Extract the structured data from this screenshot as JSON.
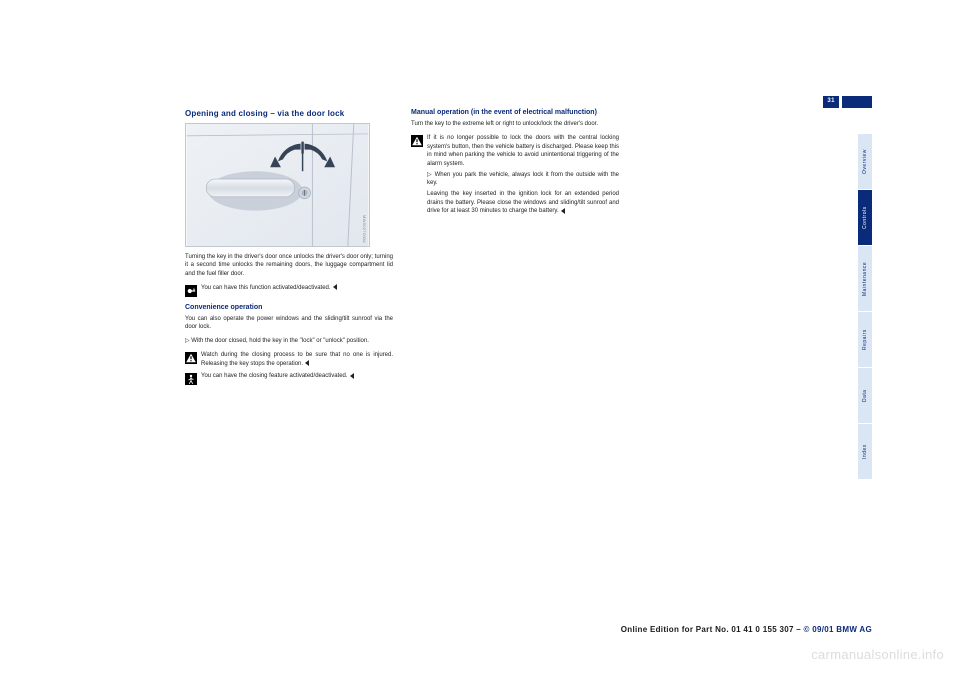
{
  "pageNumber": "31",
  "tabs": [
    {
      "label": "Overview",
      "height": 56,
      "active": false
    },
    {
      "label": "Controls",
      "height": 56,
      "active": true
    },
    {
      "label": "Maintenance",
      "height": 66,
      "active": false
    },
    {
      "label": "Repairs",
      "height": 56,
      "active": false
    },
    {
      "label": "Data",
      "height": 56,
      "active": false
    },
    {
      "label": "Index",
      "height": 56,
      "active": false
    }
  ],
  "col1": {
    "heading": "Opening and closing – via the door lock",
    "figureCode": "MW0027OWA",
    "p1": "Turning the key in the driver's door once unlocks the driver's door only; turning it a second time unlocks the remaining doors, the luggage compartment lid and the fuel filler door.",
    "p2": "You can have this function activated/deactivated.",
    "sub1": "Convenience operation",
    "p3": "You can also operate the power windows and the sliding/tilt sunroof via the door lock.",
    "p3b": "▷ With the door closed, hold the key in the \"lock\" or \"unlock\" position.",
    "p4": "Watch during the closing process to be sure that no one is injured.",
    "p4tail": "Releasing the key stops the operation.",
    "p5": "You can have the closing feature activated/deactivated."
  },
  "col2": {
    "sub1": "Manual operation (in the event of electrical malfunction)",
    "p1": "Turn the key to the extreme left or right to unlock/lock the driver's door.",
    "p2": "If it is no longer possible to lock the doors with the central locking system's button, then the vehicle battery is discharged. Please keep this in mind when parking the vehicle to avoid unintentional triggering of the alarm system.",
    "p2b": "▷ When you park the vehicle, always lock it from the outside with the key.",
    "p3": "Leaving the key inserted in the ignition lock for an extended period drains the battery. Please close the windows and sliding/tilt sunroof and drive for at least 30 minutes to charge the battery."
  },
  "sourceLine": {
    "prefix": "Online Edition for Part No. 01 41 0 155 307 – ",
    "suffix": "© 09/01 BMW AG"
  },
  "watermark": "carmanualsonline.info"
}
